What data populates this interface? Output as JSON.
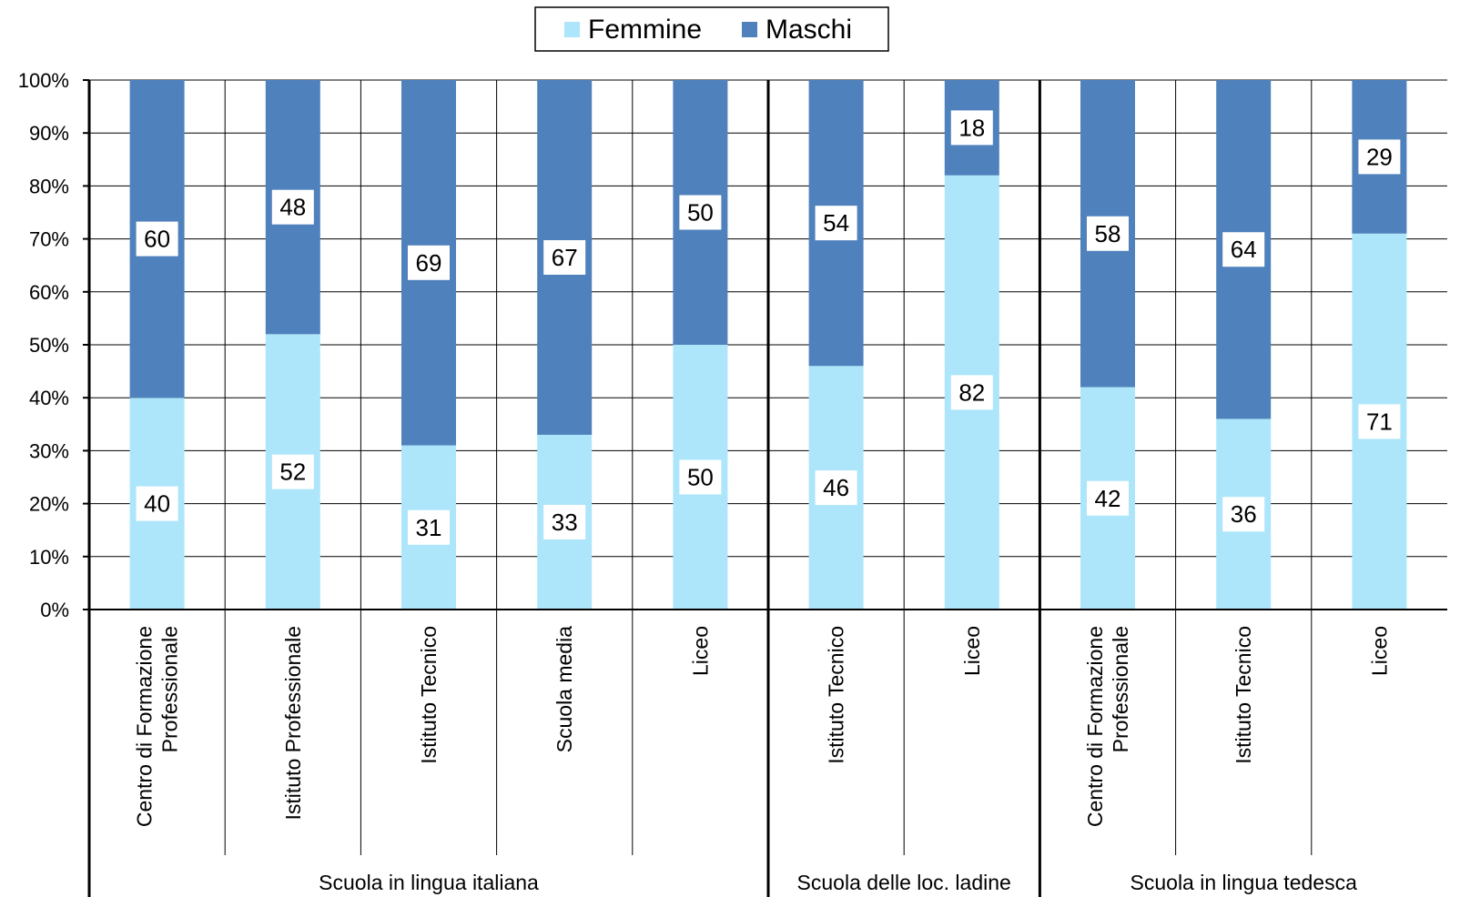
{
  "chart_data": {
    "type": "bar",
    "stacked": true,
    "percent": true,
    "title": "",
    "xlabel": "",
    "ylabel": "",
    "ylim": [
      0,
      100
    ],
    "y_ticks": [
      "0%",
      "10%",
      "20%",
      "30%",
      "40%",
      "50%",
      "60%",
      "70%",
      "80%",
      "90%",
      "100%"
    ],
    "grid": true,
    "legend": {
      "position": "top-center",
      "entries": [
        "Femmine",
        "Maschi"
      ]
    },
    "colors": {
      "Femmine": "#ade6fa",
      "Maschi": "#4f81bd"
    },
    "categories": [
      "Centro di Formazione Professionale",
      "Istituto Professionale",
      "Istituto Tecnico",
      "Scuola media",
      "Liceo",
      "Istituto Tecnico",
      "Liceo",
      "Centro di Formazione Professionale",
      "Istituto Tecnico",
      "Liceo"
    ],
    "category_lines": [
      [
        "Centro di Formazione",
        "Professionale"
      ],
      [
        "Istituto Professionale"
      ],
      [
        "Istituto Tecnico"
      ],
      [
        "Scuola media"
      ],
      [
        "Liceo"
      ],
      [
        "Istituto Tecnico"
      ],
      [
        "Liceo"
      ],
      [
        "Centro di Formazione",
        "Professionale"
      ],
      [
        "Istituto Tecnico"
      ],
      [
        "Liceo"
      ]
    ],
    "groups": [
      {
        "label": "Scuola in lingua italiana",
        "count": 5
      },
      {
        "label": "Scuola delle loc. ladine",
        "count": 2
      },
      {
        "label": "Scuola in lingua tedesca",
        "count": 3
      }
    ],
    "series": [
      {
        "name": "Femmine",
        "values": [
          40,
          52,
          31,
          33,
          50,
          46,
          82,
          42,
          36,
          71
        ]
      },
      {
        "name": "Maschi",
        "values": [
          60,
          48,
          69,
          67,
          50,
          54,
          18,
          58,
          64,
          29
        ]
      }
    ]
  }
}
